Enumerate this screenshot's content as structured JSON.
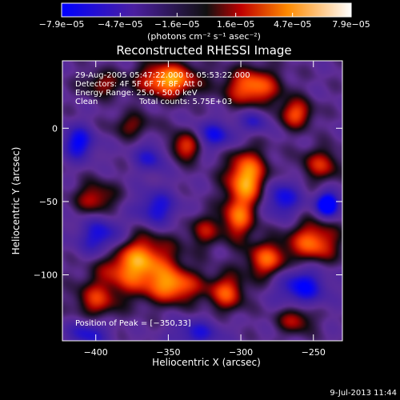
{
  "chart_data": {
    "type": "heatmap",
    "title": "Reconstructed RHESSI Image",
    "xlabel": "Heliocentric X (arcsec)",
    "ylabel": "Heliocentric Y (arcsec)",
    "xlim": [
      -423,
      -230
    ],
    "ylim": [
      -145,
      46
    ],
    "x_ticks": [
      -400,
      -350,
      -300,
      -250
    ],
    "y_ticks": [
      0,
      -50,
      -100
    ],
    "x_tick_labels": [
      "−400",
      "−350",
      "−300",
      "−250"
    ],
    "y_tick_labels": [
      "0",
      "−50",
      "−100"
    ],
    "colorbar": {
      "min": -7.9e-05,
      "max": 7.9e-05,
      "tick_values": [
        -7.9e-05,
        -4.7e-05,
        -1.6e-05,
        1.6e-05,
        4.7e-05,
        7.9e-05
      ],
      "tick_labels": [
        "−7.9e−05",
        "−4.7e−05",
        "−1.6e−05",
        "1.6e−05",
        "4.7e−05",
        "7.9e−05"
      ],
      "unit_label": "(photons cm⁻² s⁻¹ asec⁻²)"
    },
    "annotations": [
      "29-Aug-2005 05:47:22.000 to 05:53:22.000",
      "Detectors: 4F 5F 6F 7F 8F, Att 0",
      "Energy Range: 25.0 - 50.0 keV",
      "Clean",
      "Total counts: 5.75E+03"
    ],
    "peak_label": "Position of Peak = [−350,33]",
    "peak_position": [
      -350,
      33
    ],
    "blobs": [
      {
        "x": -372,
        "y": -92,
        "sx": 18,
        "sy": 14,
        "v": 1.0
      },
      {
        "x": -345,
        "y": -108,
        "sx": 12,
        "sy": 8,
        "v": 0.75
      },
      {
        "x": -400,
        "y": -118,
        "sx": 10,
        "sy": 9,
        "v": 0.55
      },
      {
        "x": -296,
        "y": -34,
        "sx": 10,
        "sy": 13,
        "v": 1.0
      },
      {
        "x": -302,
        "y": -62,
        "sx": 8,
        "sy": 10,
        "v": 0.7
      },
      {
        "x": -282,
        "y": -90,
        "sx": 10,
        "sy": 9,
        "v": 0.75
      },
      {
        "x": -310,
        "y": -112,
        "sx": 9,
        "sy": 9,
        "v": 0.7
      },
      {
        "x": -350,
        "y": 33,
        "sx": 14,
        "sy": 8,
        "v": 1.0
      },
      {
        "x": -292,
        "y": 28,
        "sx": 13,
        "sy": 9,
        "v": 0.85
      },
      {
        "x": -262,
        "y": 10,
        "sx": 8,
        "sy": 7,
        "v": 0.7
      },
      {
        "x": -250,
        "y": -78,
        "sx": 12,
        "sy": 10,
        "v": 0.8
      },
      {
        "x": -245,
        "y": -25,
        "sx": 10,
        "sy": 8,
        "v": 0.55
      },
      {
        "x": -400,
        "y": -48,
        "sx": 10,
        "sy": 8,
        "v": 0.55
      },
      {
        "x": -338,
        "y": -12,
        "sx": 8,
        "sy": 7,
        "v": 0.7
      },
      {
        "x": -375,
        "y": 2,
        "sx": 10,
        "sy": 6,
        "v": 0.4
      },
      {
        "x": -262,
        "y": -130,
        "sx": 9,
        "sy": 7,
        "v": 0.55
      },
      {
        "x": -325,
        "y": -70,
        "sx": 8,
        "sy": 8,
        "v": 0.45
      },
      {
        "x": -395,
        "y": 30,
        "sx": 10,
        "sy": 6,
        "v": 0.45
      },
      {
        "x": -240,
        "y": -52,
        "sx": 6,
        "sy": 6,
        "v": -1.0
      },
      {
        "x": -395,
        "y": -75,
        "sx": 12,
        "sy": 10,
        "v": -0.75
      },
      {
        "x": -358,
        "y": -55,
        "sx": 10,
        "sy": 9,
        "v": -0.6
      },
      {
        "x": -272,
        "y": -48,
        "sx": 9,
        "sy": 9,
        "v": -0.65
      },
      {
        "x": -412,
        "y": -10,
        "sx": 8,
        "sy": 8,
        "v": -0.7
      },
      {
        "x": -318,
        "y": -5,
        "sx": 10,
        "sy": 7,
        "v": -0.6
      },
      {
        "x": -258,
        "y": -108,
        "sx": 12,
        "sy": 10,
        "v": -0.7
      },
      {
        "x": -362,
        "y": -20,
        "sx": 8,
        "sy": 7,
        "v": -0.5
      },
      {
        "x": -330,
        "y": -140,
        "sx": 12,
        "sy": 7,
        "v": -0.5
      },
      {
        "x": -405,
        "y": -140,
        "sx": 10,
        "sy": 7,
        "v": -0.55
      },
      {
        "x": -290,
        "y": 5,
        "sx": 7,
        "sy": 6,
        "v": -0.45
      }
    ]
  },
  "footer": {
    "date_stamp": "9-Jul-2013 11:44"
  },
  "colors": {
    "background": "#000000",
    "text": "#ffffff"
  }
}
